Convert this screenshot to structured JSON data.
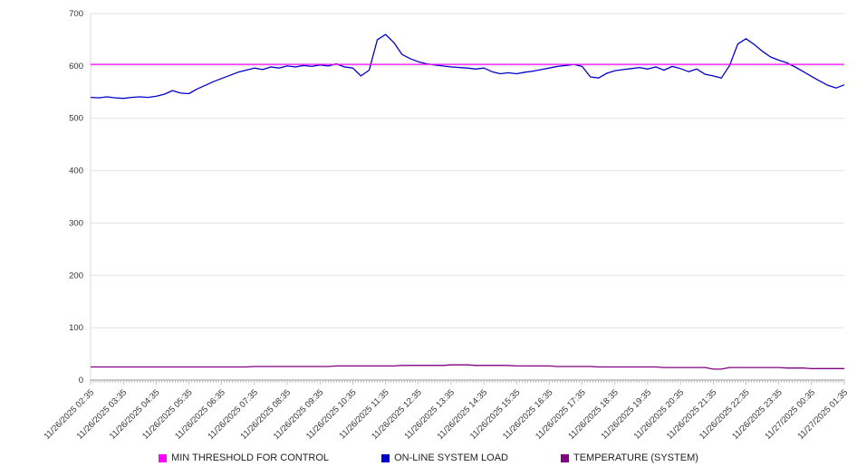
{
  "chart_data": {
    "type": "line",
    "title": "",
    "xlabel": "",
    "ylabel": "",
    "ylim": [
      0,
      700
    ],
    "y_ticks": [
      0,
      100,
      200,
      300,
      400,
      500,
      600,
      700
    ],
    "grid": true,
    "legend_position": "bottom",
    "x_labels": [
      "11/26/2025 02:35",
      "11/26/2025 03:35",
      "11/26/2025 04:35",
      "11/26/2025 05:35",
      "11/26/2025 06:35",
      "11/26/2025 07:35",
      "11/26/2025 08:35",
      "11/26/2025 09:35",
      "11/26/2025 10:35",
      "11/26/2025 11:35",
      "11/26/2025 12:35",
      "11/26/2025 13:35",
      "11/26/2025 14:35",
      "11/26/2025 15:35",
      "11/26/2025 16:35",
      "11/26/2025 17:35",
      "11/26/2025 18:35",
      "11/26/2025 19:35",
      "11/26/2025 20:35",
      "11/26/2025 21:35",
      "11/26/2025 22:35",
      "11/26/2025 23:35",
      "11/27/2025 00:35",
      "11/27/2025 01:35"
    ],
    "points_per_label": 4,
    "series": [
      {
        "name": "MIN THRESHOLD FOR CONTROL",
        "color": "#ff00ff",
        "constant": 603
      },
      {
        "name": "ON-LINE SYSTEM LOAD",
        "color": "#0000cc",
        "values": [
          540,
          539,
          541,
          539,
          538,
          540,
          541,
          540,
          542,
          546,
          553,
          548,
          547,
          556,
          563,
          570,
          576,
          582,
          588,
          592,
          596,
          593,
          598,
          596,
          600,
          598,
          601,
          599,
          602,
          600,
          604,
          598,
          596,
          581,
          592,
          650,
          660,
          645,
          622,
          614,
          608,
          604,
          602,
          600,
          598,
          597,
          596,
          594,
          596,
          589,
          585,
          587,
          585,
          588,
          590,
          593,
          596,
          599,
          601,
          603,
          599,
          579,
          577,
          586,
          591,
          593,
          595,
          597,
          594,
          598,
          592,
          599,
          595,
          589,
          594,
          584,
          581,
          577,
          601,
          642,
          652,
          641,
          628,
          617,
          611,
          606,
          598,
          589,
          580,
          571,
          563,
          558,
          564
        ]
      },
      {
        "name": "TEMPERATURE (SYSTEM)",
        "color": "#800080",
        "values": [
          25,
          25,
          25,
          25,
          25,
          25,
          25,
          25,
          25,
          25,
          25,
          25,
          25,
          25,
          25,
          25,
          25,
          25,
          25,
          25,
          26,
          26,
          26,
          26,
          26,
          26,
          26,
          26,
          26,
          26,
          27,
          27,
          27,
          27,
          27,
          27,
          27,
          27,
          28,
          28,
          28,
          28,
          28,
          28,
          29,
          29,
          29,
          28,
          28,
          28,
          28,
          28,
          27,
          27,
          27,
          27,
          27,
          26,
          26,
          26,
          26,
          26,
          25,
          25,
          25,
          25,
          25,
          25,
          25,
          25,
          24,
          24,
          24,
          24,
          24,
          24,
          21,
          21,
          24,
          24,
          24,
          24,
          24,
          24,
          24,
          23,
          23,
          23,
          22,
          22,
          22,
          22,
          22
        ]
      }
    ]
  }
}
